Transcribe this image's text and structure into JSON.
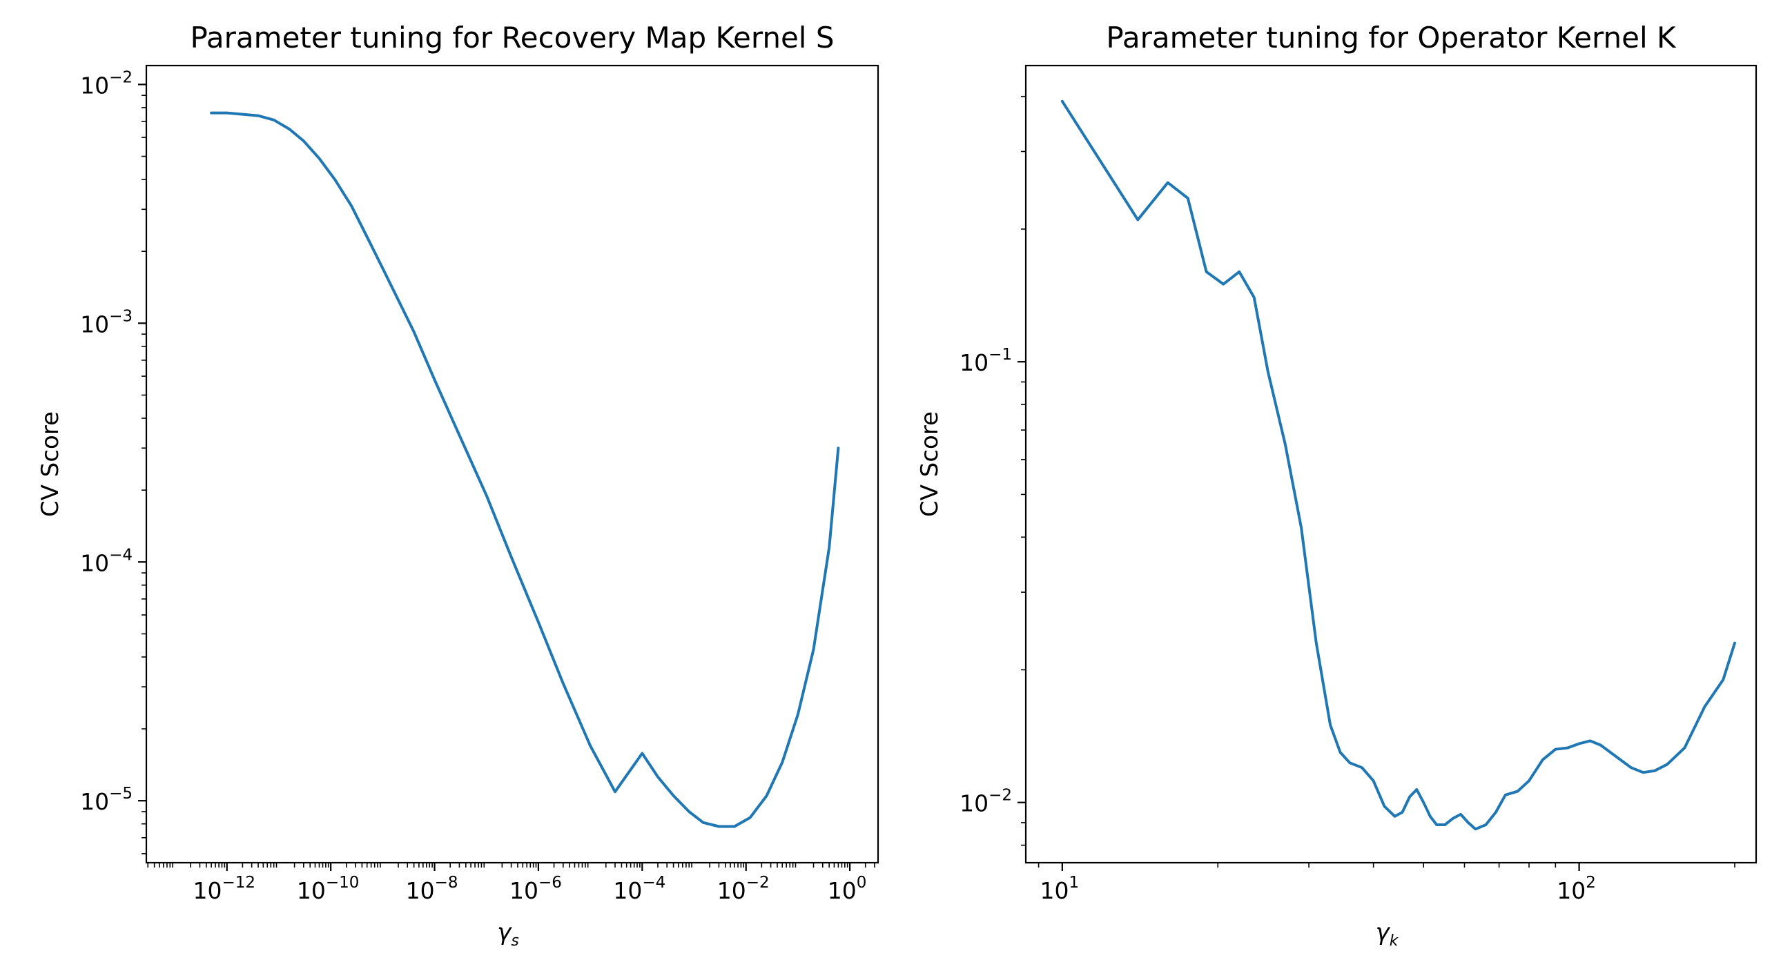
{
  "chart_data": [
    {
      "type": "line",
      "title": "Parameter tuning for Recovery Map Kernel S",
      "xlabel": "γ",
      "xlabel_sub": "s",
      "ylabel": "CV Score",
      "xscale": "log",
      "yscale": "log",
      "xlim": [
        2.8e-14,
        3.5
      ],
      "ylim": [
        5.5e-06,
        0.012
      ],
      "xticks": [
        {
          "base": "10",
          "exp": "−12",
          "value": 1e-12
        },
        {
          "base": "10",
          "exp": "−10",
          "value": 1e-10
        },
        {
          "base": "10",
          "exp": "−8",
          "value": 1e-08
        },
        {
          "base": "10",
          "exp": "−6",
          "value": 1e-06
        },
        {
          "base": "10",
          "exp": "−4",
          "value": 0.0001
        },
        {
          "base": "10",
          "exp": "−2",
          "value": 0.01
        },
        {
          "base": "10",
          "exp": "0",
          "value": 1
        }
      ],
      "yticks": [
        {
          "base": "10",
          "exp": "−5",
          "value": 1e-05
        },
        {
          "base": "10",
          "exp": "−4",
          "value": 0.0001
        },
        {
          "base": "10",
          "exp": "−3",
          "value": 0.001
        },
        {
          "base": "10",
          "exp": "−2",
          "value": 0.01
        }
      ],
      "grid": false,
      "color": "#1f77b4",
      "series": [
        {
          "x": [
            5e-13,
            1e-12,
            2e-12,
            4e-12,
            8e-12,
            1.6e-11,
            3e-11,
            6e-11,
            1.2e-10,
            2.5e-10,
            5e-10,
            1e-09,
            2e-09,
            4e-09,
            1e-08,
            3e-08,
            1e-07,
            3e-07,
            1e-06,
            3e-06,
            1e-05,
            3e-05,
            0.0001,
            0.0002,
            0.0004,
            0.0008,
            0.0015,
            0.003,
            0.006,
            0.012,
            0.025,
            0.05,
            0.1,
            0.2,
            0.4,
            0.6
          ],
          "y": [
            0.0076,
            0.0076,
            0.0075,
            0.0074,
            0.0071,
            0.0065,
            0.0058,
            0.0049,
            0.004,
            0.0031,
            0.0023,
            0.0017,
            0.00125,
            0.00092,
            0.00058,
            0.00034,
            0.00019,
            0.000105,
            5.6e-05,
            3.1e-05,
            1.7e-05,
            1.09e-05,
            1.58e-05,
            1.26e-05,
            1.05e-05,
            9e-06,
            8.1e-06,
            7.8e-06,
            7.8e-06,
            8.5e-06,
            1.05e-05,
            1.45e-05,
            2.3e-05,
            4.3e-05,
            0.000115,
            0.0003
          ]
        }
      ]
    },
    {
      "type": "line",
      "title": "Parameter tuning for Operator Kernel K",
      "xlabel": "γ",
      "xlabel_sub": "k",
      "ylabel": "CV Score",
      "xscale": "log",
      "yscale": "log",
      "xlim": [
        8.5,
        220
      ],
      "ylim": [
        0.0073,
        0.47
      ],
      "xticks": [
        {
          "base": "10",
          "exp": "1",
          "value": 10
        },
        {
          "base": "10",
          "exp": "2",
          "value": 100
        }
      ],
      "yticks": [
        {
          "base": "10",
          "exp": "−2",
          "value": 0.01
        },
        {
          "base": "10",
          "exp": "−1",
          "value": 0.1
        }
      ],
      "grid": false,
      "color": "#1f77b4",
      "series": [
        {
          "x": [
            10,
            14,
            16,
            17.5,
            19,
            20.5,
            22,
            23.5,
            25,
            27,
            29,
            31,
            33,
            34.5,
            36,
            38,
            40,
            42,
            44,
            45.5,
            47,
            48.5,
            50,
            51.5,
            53,
            55,
            57,
            59,
            61,
            63,
            66,
            69,
            72,
            76,
            80,
            85,
            90,
            95,
            100,
            105,
            110,
            118,
            126,
            133,
            140,
            148,
            160,
            175,
            190,
            200
          ],
          "y": [
            0.39,
            0.21,
            0.255,
            0.235,
            0.16,
            0.15,
            0.16,
            0.14,
            0.095,
            0.065,
            0.042,
            0.023,
            0.015,
            0.013,
            0.0123,
            0.012,
            0.0112,
            0.0098,
            0.0093,
            0.0095,
            0.0103,
            0.0107,
            0.01,
            0.0093,
            0.0089,
            0.0089,
            0.0092,
            0.0094,
            0.009,
            0.0087,
            0.0089,
            0.0095,
            0.0104,
            0.0106,
            0.0112,
            0.0125,
            0.0132,
            0.0133,
            0.0136,
            0.0138,
            0.0135,
            0.0127,
            0.012,
            0.0117,
            0.0118,
            0.0122,
            0.0133,
            0.0165,
            0.019,
            0.023
          ]
        }
      ]
    }
  ]
}
